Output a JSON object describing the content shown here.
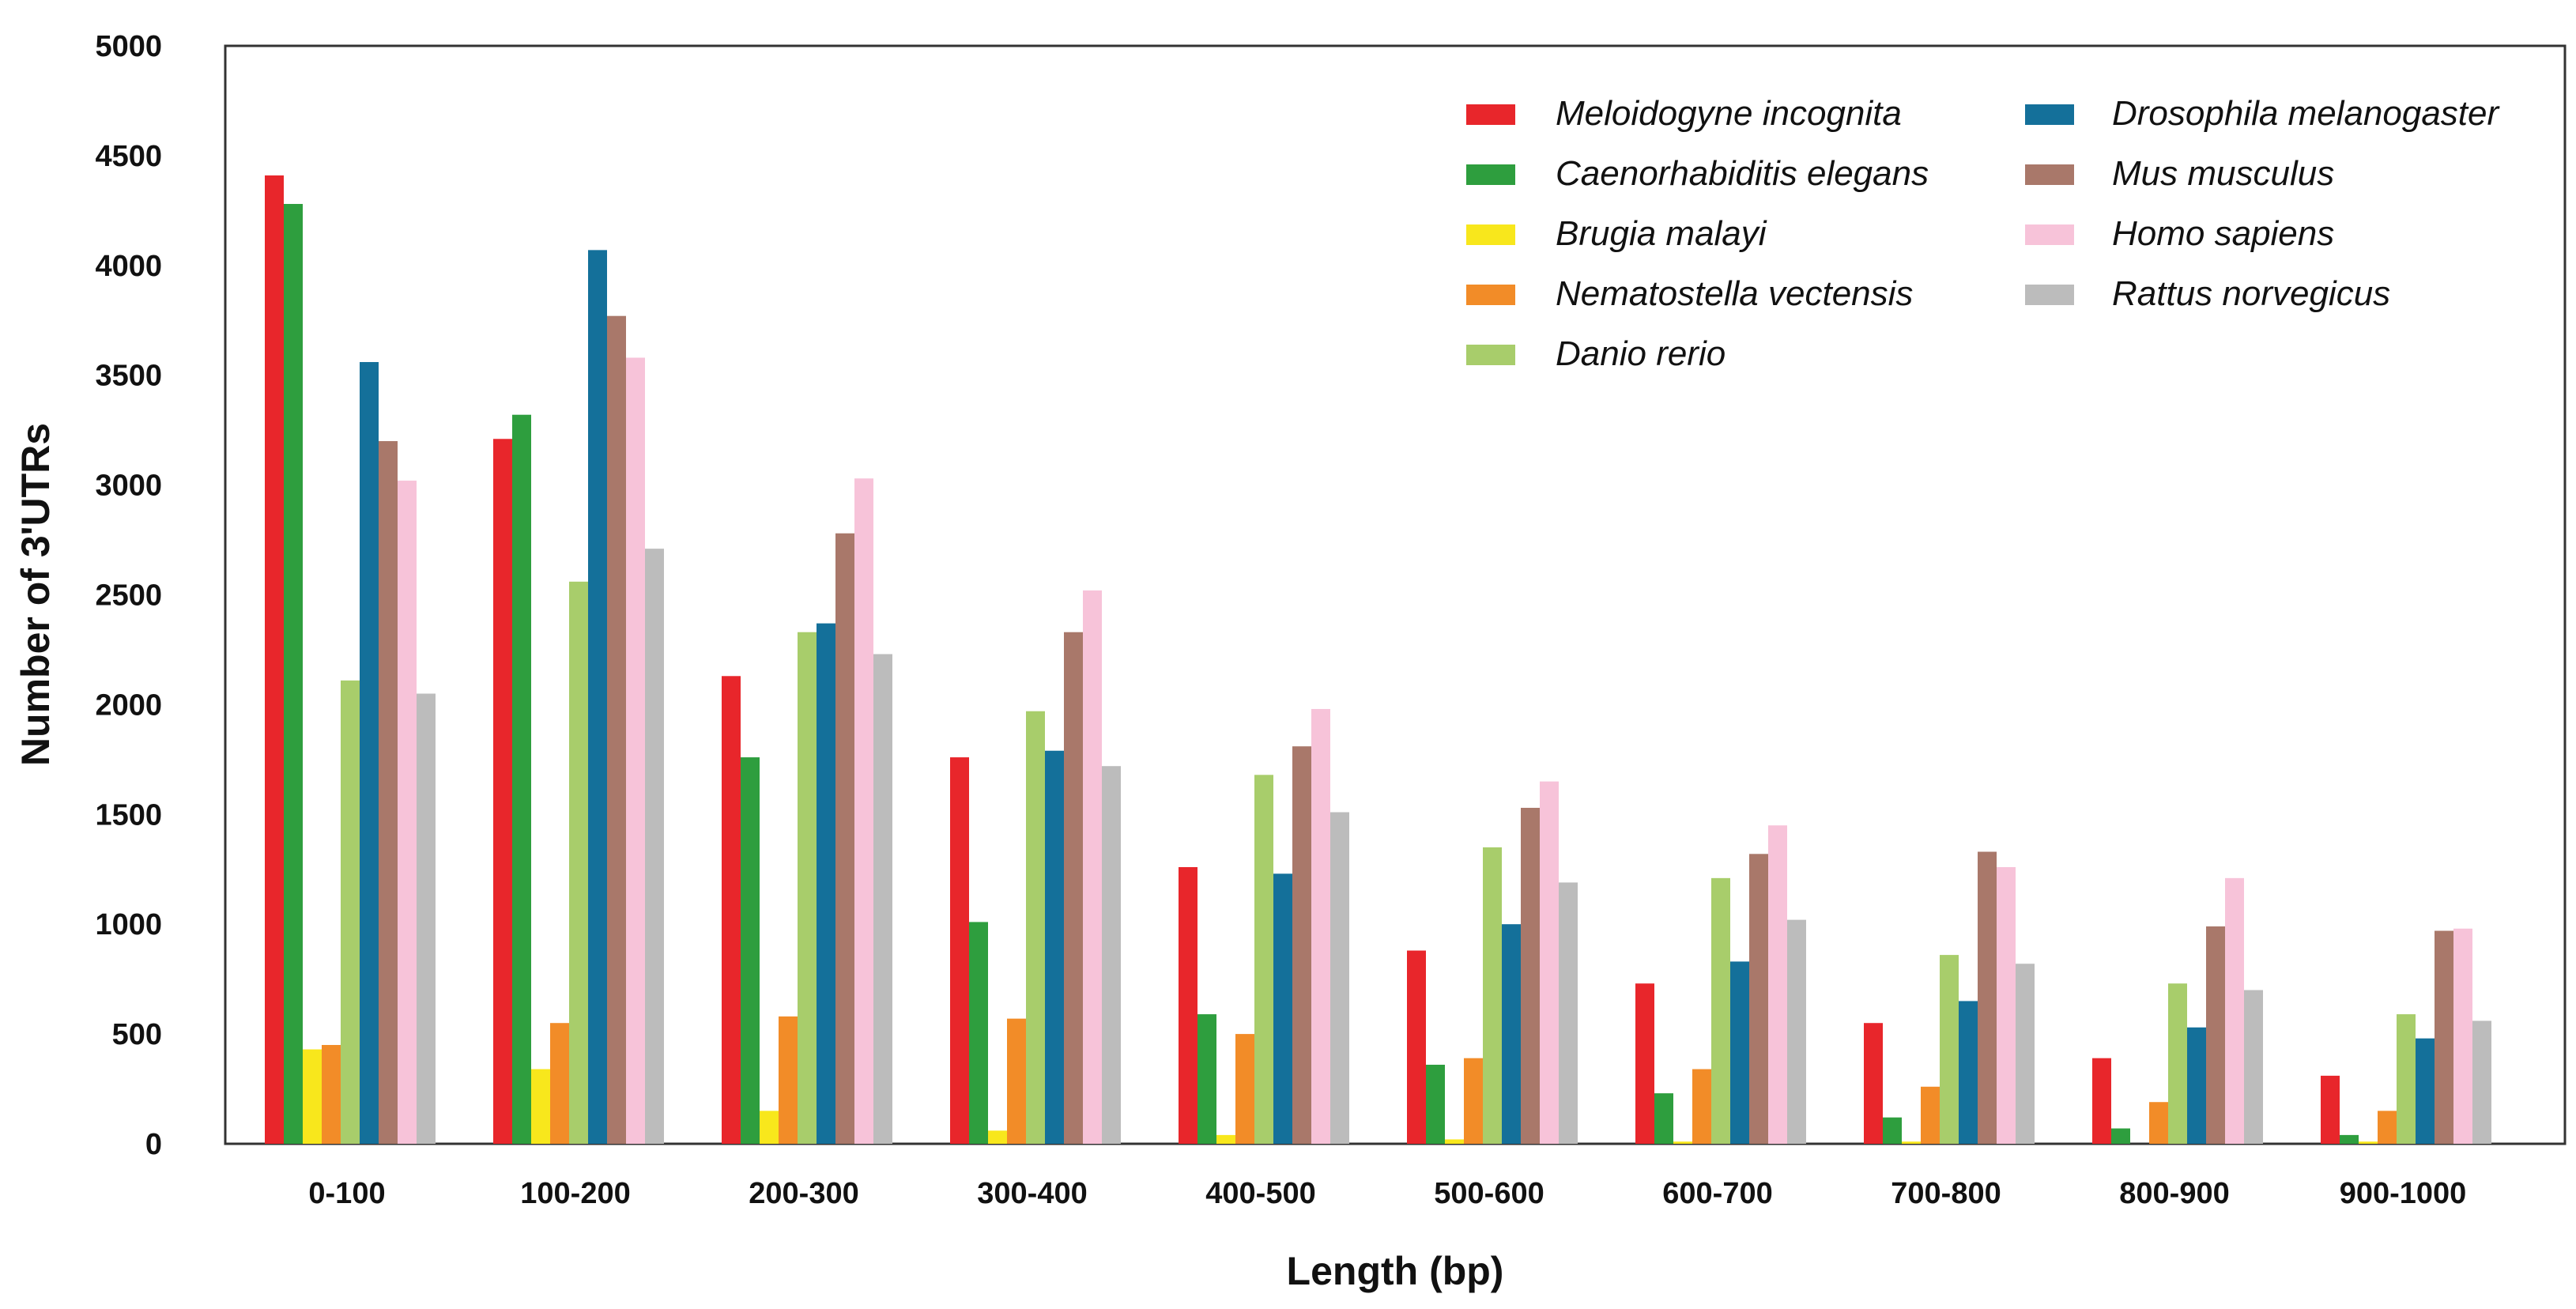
{
  "chart_data": {
    "type": "bar",
    "title": "",
    "xlabel": "Length (bp)",
    "ylabel": "Number of 3'UTRs",
    "ylim": [
      0,
      5000
    ],
    "yticks": [
      "0",
      "500",
      "1000",
      "1500",
      "2000",
      "2500",
      "3000",
      "3500",
      "4000",
      "4500",
      "5000"
    ],
    "categories": [
      "0-100",
      "100-200",
      "200-300",
      "300-400",
      "400-500",
      "500-600",
      "600-700",
      "700-800",
      "800-900",
      "900-1000"
    ],
    "legend_position": "top-right",
    "series": [
      {
        "name": "Meloidogyne incognita",
        "color": "#e8262b",
        "values": [
          4410,
          3210,
          2130,
          1760,
          1260,
          880,
          730,
          550,
          390,
          310
        ]
      },
      {
        "name": "Caenorhabiditis elegans",
        "color": "#2e9e3e",
        "values": [
          4280,
          3320,
          1760,
          1010,
          590,
          360,
          230,
          120,
          70,
          40
        ]
      },
      {
        "name": "Brugia malayi",
        "color": "#f8e71c",
        "values": [
          430,
          340,
          150,
          60,
          40,
          20,
          10,
          10,
          0,
          10
        ]
      },
      {
        "name": "Nematostella vectensis",
        "color": "#f28c28",
        "values": [
          450,
          550,
          580,
          570,
          500,
          390,
          340,
          260,
          190,
          150
        ]
      },
      {
        "name": "Danio rerio",
        "color": "#a8cd6b",
        "values": [
          2110,
          2560,
          2330,
          1970,
          1680,
          1350,
          1210,
          860,
          730,
          590
        ]
      },
      {
        "name": "Drosophila melanogaster",
        "color": "#14709a",
        "values": [
          3560,
          4070,
          2370,
          1790,
          1230,
          1000,
          830,
          650,
          530,
          480
        ]
      },
      {
        "name": "Mus musculus",
        "color": "#a9786a",
        "values": [
          3200,
          3770,
          2780,
          2330,
          1810,
          1530,
          1320,
          1330,
          990,
          970
        ]
      },
      {
        "name": "Homo sapiens",
        "color": "#f7c3d9",
        "values": [
          3020,
          3580,
          3030,
          2520,
          1980,
          1650,
          1450,
          1260,
          1210,
          980
        ]
      },
      {
        "name": "Rattus norvegicus",
        "color": "#bcbcbc",
        "values": [
          2050,
          2710,
          2230,
          1720,
          1510,
          1190,
          1020,
          820,
          700,
          560
        ]
      }
    ]
  }
}
